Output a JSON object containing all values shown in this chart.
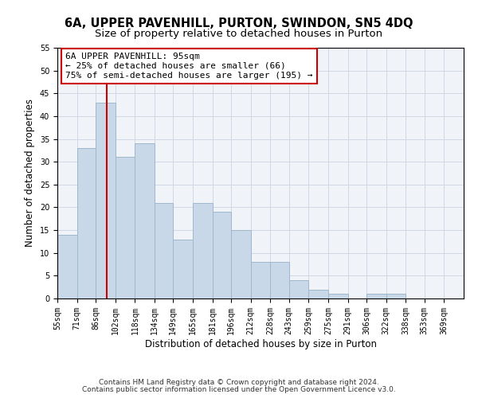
{
  "title_line1": "6A, UPPER PAVENHILL, PURTON, SWINDON, SN5 4DQ",
  "title_line2": "Size of property relative to detached houses in Purton",
  "xlabel": "Distribution of detached houses by size in Purton",
  "ylabel": "Number of detached properties",
  "bar_values": [
    14,
    33,
    43,
    31,
    34,
    21,
    13,
    21,
    19,
    15,
    8,
    8,
    4,
    2,
    1,
    0,
    1,
    1,
    0,
    0,
    0
  ],
  "bin_edges": [
    55,
    71,
    86,
    102,
    118,
    134,
    149,
    165,
    181,
    196,
    212,
    228,
    243,
    259,
    275,
    291,
    306,
    322,
    338,
    353,
    369,
    385
  ],
  "x_tick_labels": [
    "55sqm",
    "71sqm",
    "86sqm",
    "102sqm",
    "118sqm",
    "134sqm",
    "149sqm",
    "165sqm",
    "181sqm",
    "196sqm",
    "212sqm",
    "228sqm",
    "243sqm",
    "259sqm",
    "275sqm",
    "291sqm",
    "306sqm",
    "322sqm",
    "338sqm",
    "353sqm",
    "369sqm"
  ],
  "bar_color": "#c8d8e8",
  "bar_edge_color": "#a0b8cc",
  "vline_x": 95,
  "vline_color": "#cc0000",
  "annotation_text": "6A UPPER PAVENHILL: 95sqm\n← 25% of detached houses are smaller (66)\n75% of semi-detached houses are larger (195) →",
  "annotation_box_color": "#ffffff",
  "annotation_box_edgecolor": "#cc0000",
  "ylim": [
    0,
    55
  ],
  "yticks": [
    0,
    5,
    10,
    15,
    20,
    25,
    30,
    35,
    40,
    45,
    50,
    55
  ],
  "grid_color": "#d0d8e8",
  "background_color": "#f0f4f8",
  "footer_line1": "Contains HM Land Registry data © Crown copyright and database right 2024.",
  "footer_line2": "Contains public sector information licensed under the Open Government Licence v3.0.",
  "title_fontsize": 10.5,
  "subtitle_fontsize": 9.5,
  "axis_label_fontsize": 8.5,
  "tick_fontsize": 7,
  "annotation_fontsize": 8,
  "footer_fontsize": 6.5
}
